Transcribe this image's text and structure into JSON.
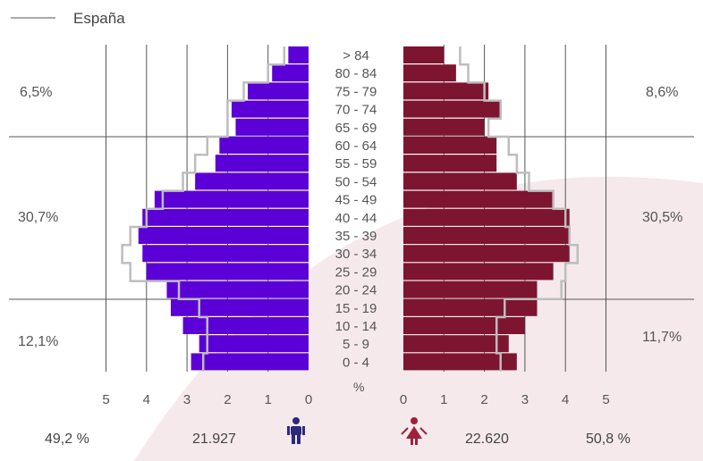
{
  "legend": {
    "label": "España",
    "color": "#aaaaaa"
  },
  "colors": {
    "male": "#5b00d6",
    "female": "#7d1530",
    "outline": "#bdbdbd",
    "grid": "#555555",
    "bg_shape": "#f5e9ec"
  },
  "group_percentages": {
    "male": [
      "6,5%",
      "30,7%",
      "12,1%"
    ],
    "female": [
      "8,6%",
      "30,5%",
      "11,7%"
    ]
  },
  "axis_unit": "%",
  "footer": {
    "male_pct": "49,2 %",
    "male_count": "21.927",
    "female_count": "22.620",
    "female_pct": "50,8 %",
    "male_icon": "male-icon",
    "female_icon": "female-icon"
  },
  "chart_data": {
    "type": "bar",
    "orientation": "horizontal-pyramid",
    "categories": [
      "> 84",
      "80 - 84",
      "75 - 79",
      "70 - 74",
      "65 - 69",
      "60 - 64",
      "55 - 59",
      "50 - 54",
      "45 - 49",
      "40 - 44",
      "35 - 39",
      "30 - 34",
      "25 - 29",
      "20 - 24",
      "15 - 19",
      "10 - 14",
      "5 - 9",
      "0 - 4"
    ],
    "xlim": [
      0,
      5
    ],
    "x_ticks_male": [
      "5",
      "4",
      "3",
      "2",
      "1",
      "0"
    ],
    "x_ticks_female": [
      "0",
      "1",
      "2",
      "3",
      "4",
      "5"
    ],
    "series": [
      {
        "name": "male",
        "values": [
          0.5,
          0.9,
          1.5,
          1.9,
          1.8,
          2.2,
          2.3,
          2.8,
          3.8,
          4.1,
          4.2,
          4.1,
          4.0,
          3.5,
          3.4,
          3.1,
          2.7,
          2.9
        ]
      },
      {
        "name": "female",
        "values": [
          1.0,
          1.3,
          2.1,
          2.4,
          2.0,
          2.3,
          2.3,
          2.8,
          3.7,
          4.1,
          4.1,
          4.1,
          3.7,
          3.3,
          3.3,
          3.0,
          2.6,
          2.8
        ]
      },
      {
        "name": "España",
        "role": "outline",
        "male": [
          0.6,
          1.0,
          1.6,
          2.0,
          2.0,
          2.5,
          2.8,
          3.1,
          3.6,
          4.0,
          4.4,
          4.6,
          4.4,
          3.2,
          2.7,
          2.5,
          2.5,
          2.6
        ],
        "female": [
          1.4,
          1.6,
          2.0,
          2.4,
          2.1,
          2.6,
          2.8,
          3.1,
          3.7,
          4.0,
          4.1,
          4.3,
          4.0,
          3.9,
          2.5,
          2.3,
          2.3,
          2.4
        ]
      }
    ]
  }
}
